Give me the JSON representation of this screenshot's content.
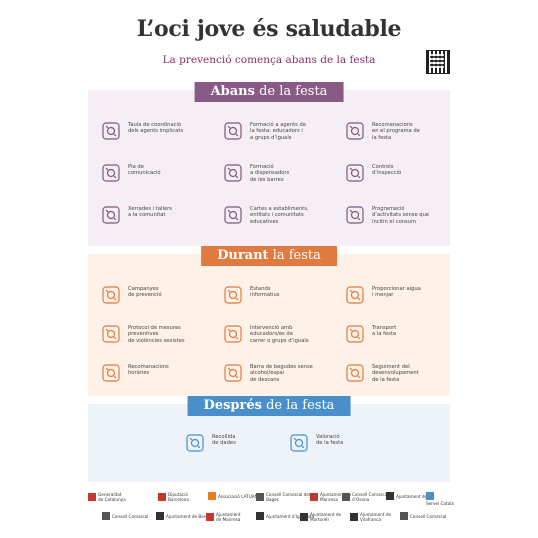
{
  "title": "L’oci jove és saludable",
  "subtitle": "La prevenció comença abans de la festa",
  "colors": {
    "abans": "#8a5a87",
    "durant": "#e07a3f",
    "despres": "#4a8fc9",
    "abans_icon": "#7d5a7b",
    "durant_icon": "#e07a3f",
    "despres_icon": "#4a8fc9"
  },
  "sections": {
    "abans": {
      "title_bold": "Abans",
      "title_rest": " de la festa",
      "items": [
        {
          "icon": "arrows-converge-icon",
          "label": "Taula de coordinació\ndels agents implicats"
        },
        {
          "icon": "people-circle-icon",
          "label": "Formació a agents de\nla festa: educadors i\na grups d’iguals"
        },
        {
          "icon": "document-list-icon",
          "label": "Recomanacions\nen el programa de\nla festa"
        },
        {
          "icon": "clipboard-icon",
          "label": "Pla de\ncomunicació"
        },
        {
          "icon": "bar-staff-icon",
          "label": "Formació\na dispensadors\nde les barres"
        },
        {
          "icon": "checklist-icon",
          "label": "Controls\nd’inspecció"
        },
        {
          "icon": "network-icon",
          "label": "Xerrades i tallers\na la comunitat"
        },
        {
          "icon": "envelope-icon",
          "label": "Cartes a establiments,\nentitats i comunitats\neducatives"
        },
        {
          "icon": "program-icon",
          "label": "Programació\nd’activitats sense que\nincitin el consum"
        }
      ]
    },
    "durant": {
      "title_bold": "Durant",
      "title_rest": " la festa",
      "items": [
        {
          "icon": "megaphone-icon",
          "label": "Campanyes\nde prevenció"
        },
        {
          "icon": "info-stand-icon",
          "label": "Estands\ninformatius"
        },
        {
          "icon": "food-water-icon",
          "label": "Proporcionar aigua\ni menjar"
        },
        {
          "icon": "hand-stop-icon",
          "label": "Protocol de mesures\npreventives\nde violències sexistes"
        },
        {
          "icon": "people-circle-icon",
          "label": "Intervenció amb\neducadors/es de\ncarrer o grups d’iguals"
        },
        {
          "icon": "bus-icon",
          "label": "Transport\na la festa"
        },
        {
          "icon": "clock-icon",
          "label": "Recomanacions\nhoràries"
        },
        {
          "icon": "sofa-icon",
          "label": "Barra de begudes sense\nalcohol/espai\nde descans"
        },
        {
          "icon": "binoculars-icon",
          "label": "Seguiment del\ndesenvolupament\nde la festa"
        }
      ]
    },
    "despres": {
      "title_bold": "Després",
      "title_rest": " de la festa",
      "items": [
        {
          "icon": "clipboard-check-icon",
          "label": "Recollida\nde dades"
        },
        {
          "icon": "chat-bubbles-icon",
          "label": "Valoració\nde la festa"
        }
      ]
    }
  },
  "logos": [
    "Generalitat\nde Catalunya",
    "Diputació\nBarcelona",
    "Associació LATUAN",
    "Consell Comarcal del Bages",
    "Ajuntament de Manresa",
    "Consell Comarcal d’Osona",
    "Ajuntament de Vic",
    "Servei Català",
    "Consell Comarcal",
    "Ajuntament de Berga",
    "Ajuntament\nde Manresa",
    "Ajuntament d’Igualada",
    "Ajuntament de Martorell",
    "Ajuntament de Vilafranca",
    "Consell Comarcal"
  ]
}
